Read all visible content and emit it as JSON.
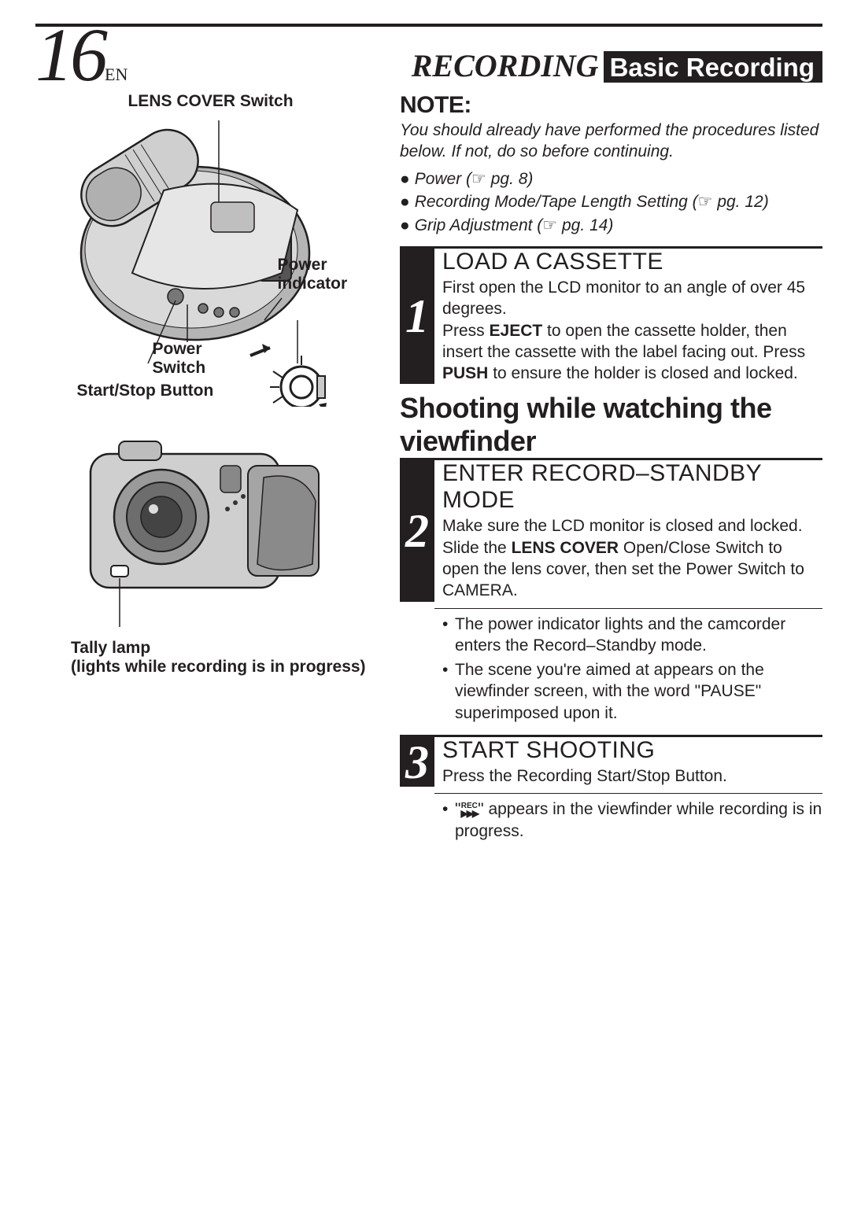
{
  "header": {
    "page_number": "16",
    "page_suffix": "EN",
    "title_left": "RECORDING",
    "title_right": "Basic Recording"
  },
  "left": {
    "label_lens_cover": "LENS COVER Switch",
    "label_power_indicator": "Power\nindicator",
    "label_power_switch": "Power\nSwitch",
    "label_start_stop": "Start/Stop Button",
    "tally_line1": "Tally lamp",
    "tally_line2": "(lights while recording is in progress)"
  },
  "right": {
    "note_h": "NOTE:",
    "note_intro": "You should already have performed the procedures listed below. If not, do so before continuing.",
    "note_items": [
      {
        "text": "Power (",
        "page": "pg. 8)"
      },
      {
        "text": "Recording Mode/Tape Length Setting (",
        "page": "pg. 12)"
      },
      {
        "text": "Grip Adjustment (",
        "page": "pg. 14)"
      }
    ],
    "h2_shooting": "Shooting while watching the viewfinder",
    "steps": [
      {
        "num": "1",
        "title": "LOAD A CASSETTE",
        "body_parts": [
          {
            "t": "First open the LCD monitor to an angle of over 45 degrees."
          },
          {
            "t": "Press "
          },
          {
            "b": "EJECT"
          },
          {
            "t": " to open the cassette holder, then insert the cassette with the label facing out. Press "
          },
          {
            "b": "PUSH"
          },
          {
            "t": " to ensure the holder is closed and locked."
          }
        ],
        "extras": []
      },
      {
        "num": "2",
        "title": "ENTER RECORD–STANDBY MODE",
        "body_parts": [
          {
            "t": "Make sure the LCD monitor is closed and locked. Slide the "
          },
          {
            "b": "LENS COVER"
          },
          {
            "t": " Open/Close Switch to open the lens cover, then set the Power Switch to CAMERA."
          }
        ],
        "extras": [
          "The power indicator lights and the camcorder enters the Record–Standby mode.",
          "The scene you're aimed at appears on the viewfinder screen, with the word \"PAUSE\" superimposed upon it."
        ]
      },
      {
        "num": "3",
        "title": "START SHOOTING",
        "body_parts": [
          {
            "t": "Press the Recording Start/Stop Button."
          }
        ],
        "extras_rec": {
          "pre": "\"",
          "post": "\" appears in the viewfinder while recording is in progress."
        }
      }
    ]
  },
  "styling": {
    "page_bg": "#ffffff",
    "text_color": "#231f20",
    "header_bar_bg": "#231f20",
    "header_bar_fg": "#ffffff"
  }
}
